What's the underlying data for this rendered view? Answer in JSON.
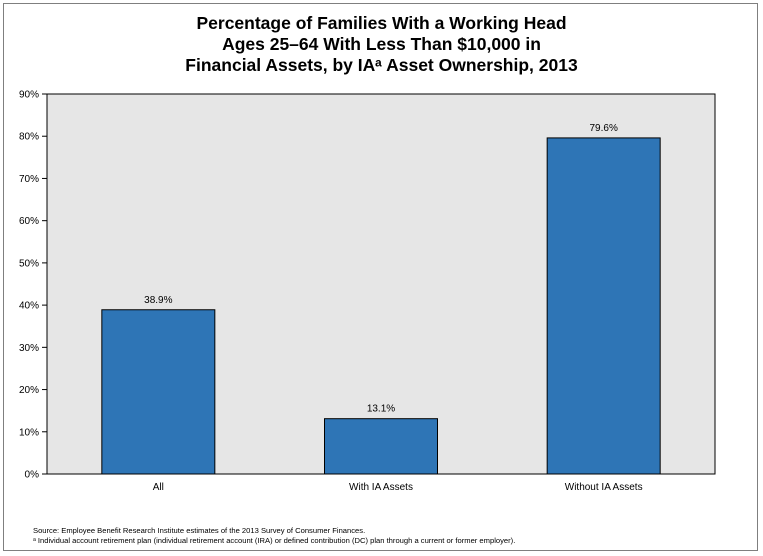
{
  "chart_data": {
    "type": "bar",
    "title_lines": [
      "Percentage of Families With a Working Head",
      "Ages 25–64 With Less Than $10,000 in",
      "Financial Assets, by IAᵃ Asset Ownership, 2013"
    ],
    "categories": [
      "All",
      "With IA Assets",
      "Without IA Assets"
    ],
    "values": [
      38.9,
      13.1,
      79.6
    ],
    "value_labels": [
      "38.9%",
      "13.1%",
      "79.6%"
    ],
    "ylim": [
      0,
      90
    ],
    "yticks": [
      0,
      10,
      20,
      30,
      40,
      50,
      60,
      70,
      80,
      90
    ],
    "ytick_labels": [
      "0%",
      "10%",
      "20%",
      "30%",
      "40%",
      "50%",
      "60%",
      "70%",
      "80%",
      "90%"
    ],
    "grid": false,
    "xlabel": "",
    "ylabel": ""
  },
  "colors": {
    "bar": "#2e75b6",
    "plot_bg": "#e6e6e6",
    "bar_edge": "#000000"
  },
  "footnotes": {
    "source": "Source: Employee Benefit Research Institute estimates of the 2013 Survey of Consumer Finances.",
    "note": "ᵃ Individual account retirement plan (individual retirement account (IRA) or defined contribution (DC) plan through a current or former employer)."
  }
}
